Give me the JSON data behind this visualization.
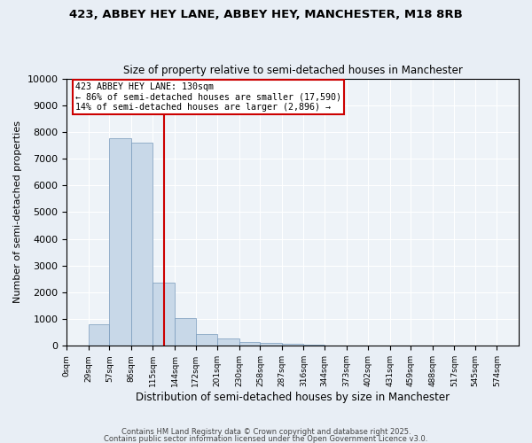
{
  "title1": "423, ABBEY HEY LANE, ABBEY HEY, MANCHESTER, M18 8RB",
  "title2": "Size of property relative to semi-detached houses in Manchester",
  "xlabel": "Distribution of semi-detached houses by size in Manchester",
  "ylabel": "Number of semi-detached properties",
  "bin_labels": [
    "0sqm",
    "29sqm",
    "57sqm",
    "86sqm",
    "115sqm",
    "144sqm",
    "172sqm",
    "201sqm",
    "230sqm",
    "258sqm",
    "287sqm",
    "316sqm",
    "344sqm",
    "373sqm",
    "402sqm",
    "431sqm",
    "459sqm",
    "488sqm",
    "517sqm",
    "545sqm",
    "574sqm"
  ],
  "bin_edges": [
    0,
    29,
    57,
    86,
    115,
    144,
    172,
    201,
    230,
    258,
    287,
    316,
    344,
    373,
    402,
    431,
    459,
    488,
    517,
    545,
    574
  ],
  "bar_values": [
    0,
    800,
    7750,
    7600,
    2350,
    1050,
    450,
    280,
    130,
    100,
    75,
    40,
    25,
    15,
    10,
    5,
    5,
    3,
    2,
    1,
    0
  ],
  "bar_color": "#c8d8e8",
  "bar_edge_color": "#7799bb",
  "property_size": 130,
  "property_line_color": "#cc0000",
  "annotation_line1": "423 ABBEY HEY LANE: 130sqm",
  "annotation_line2": "← 86% of semi-detached houses are smaller (17,590)",
  "annotation_line3": "14% of semi-detached houses are larger (2,896) →",
  "annotation_box_color": "#ffffff",
  "annotation_box_edge_color": "#cc0000",
  "ylim": [
    0,
    10000
  ],
  "yticks": [
    0,
    1000,
    2000,
    3000,
    4000,
    5000,
    6000,
    7000,
    8000,
    9000,
    10000
  ],
  "footnote1": "Contains HM Land Registry data © Crown copyright and database right 2025.",
  "footnote2": "Contains public sector information licensed under the Open Government Licence v3.0.",
  "bg_color": "#e8eef5",
  "plot_bg_color": "#eef3f8",
  "grid_color": "#ffffff"
}
